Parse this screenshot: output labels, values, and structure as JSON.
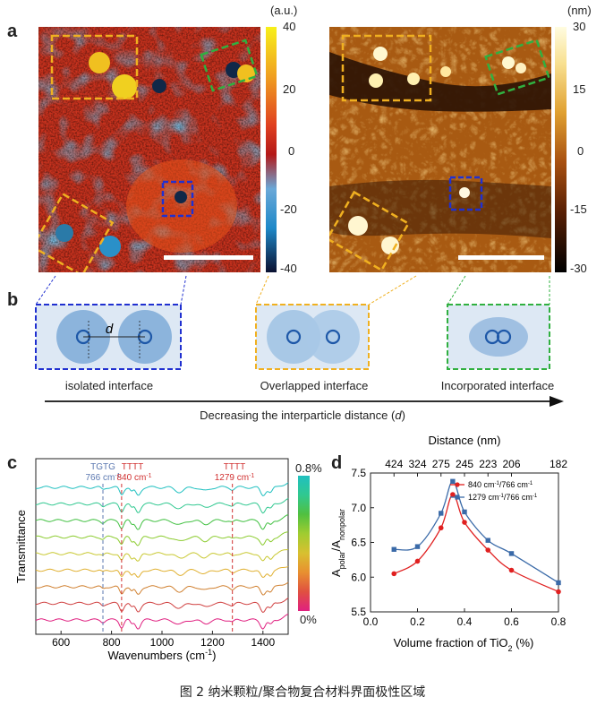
{
  "panel_labels": {
    "a": "a",
    "b": "b",
    "c": "c",
    "d": "d"
  },
  "panel_a": {
    "left_colorbar": {
      "unit": "(a.u.)",
      "ticks": [
        "40",
        "20",
        "0",
        "-20",
        "-40"
      ]
    },
    "right_colorbar": {
      "unit": "(nm)",
      "ticks": [
        "30",
        "15",
        "0",
        "-15",
        "-30"
      ]
    }
  },
  "panel_b": {
    "d_label": "d",
    "captions": [
      "isolated interface",
      "Overlapped interface",
      "Incorporated interface"
    ],
    "arrow_label": "Decreasing the interparticle distance (",
    "arrow_label_var": "d",
    "arrow_label_end": ")"
  },
  "panel_c": {
    "ylabel": "Transmittance",
    "xlabel": "Wavenumbers (cm",
    "xlabel_sup": "-1",
    "xlabel_end": ")",
    "x_ticks": [
      "600",
      "800",
      "1000",
      "1200",
      "1400"
    ],
    "annotations": [
      {
        "line1": "TGTG",
        "line2": "766 cm",
        "sup": "-1",
        "color": "#5b78b0"
      },
      {
        "line1": "TTTT",
        "line2": "840 cm",
        "sup": "-1",
        "color": "#d03030"
      },
      {
        "line1": "TTTT",
        "line2": "1279 cm",
        "sup": "-1",
        "color": "#d03030"
      }
    ],
    "colorbar": {
      "top": "0.8%",
      "bottom": "0%"
    },
    "spectra_colors": [
      "#20c0c0",
      "#30c890",
      "#40c040",
      "#8ccc30",
      "#c8c830",
      "#e0b030",
      "#d08030",
      "#d04040",
      "#e02080"
    ]
  },
  "chart_data": {
    "type": "line",
    "top_axis_label": "Distance (nm)",
    "top_ticks": [
      "424",
      "324",
      "275",
      "245",
      "223",
      "206",
      "182"
    ],
    "top_tick_x": [
      0.1,
      0.2,
      0.3,
      0.4,
      0.5,
      0.6,
      0.8
    ],
    "ylabel": "A",
    "ylabel_sub1": "polar",
    "ylabel_mid": "/A",
    "ylabel_sub2": "nonpolar",
    "xlabel": "Volume fraction of TiO",
    "xlabel_sub": "2",
    "xlabel_end": " (%)",
    "xlim": [
      0.0,
      0.8
    ],
    "ylim": [
      5.5,
      7.5
    ],
    "x_ticks": [
      "0.0",
      "0.2",
      "0.4",
      "0.6",
      "0.8"
    ],
    "y_ticks": [
      "5.5",
      "6.0",
      "6.5",
      "7.0",
      "7.5"
    ],
    "x": [
      0.1,
      0.2,
      0.3,
      0.35,
      0.4,
      0.5,
      0.6,
      0.8
    ],
    "series": [
      {
        "name": "840 cm-1/766 cm-1",
        "color": "#e02020",
        "marker": "circle",
        "values": [
          6.05,
          6.23,
          6.71,
          7.19,
          6.79,
          6.39,
          6.1,
          5.79
        ]
      },
      {
        "name": "1279 cm-1/766 cm-1",
        "color": "#3a6aa8",
        "marker": "square",
        "values": [
          6.4,
          6.44,
          6.92,
          7.38,
          6.94,
          6.53,
          6.34,
          5.92
        ]
      }
    ],
    "legend": [
      {
        "text": "840 cm",
        "sup1": "-1",
        "mid": "/766 cm",
        "sup2": "-1"
      },
      {
        "text": "1279 cm",
        "sup1": "-1",
        "mid": "/766 cm",
        "sup2": "-1"
      }
    ],
    "legend_position": "top-right"
  },
  "caption": "图 2  纳米颗粒/聚合物复合材料界面极性区域"
}
